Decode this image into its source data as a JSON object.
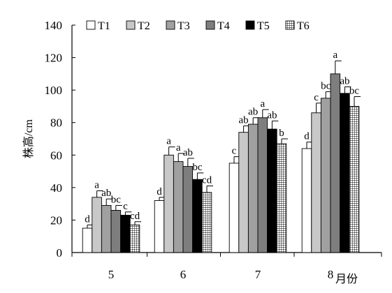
{
  "chart_data": {
    "type": "bar",
    "title": "",
    "xlabel": "月份",
    "ylabel": "株高/cm",
    "ylim": [
      0,
      140
    ],
    "yticks": [
      0,
      20,
      40,
      60,
      80,
      100,
      120,
      140
    ],
    "grid": false,
    "legend_position": "top",
    "categories": [
      "5",
      "6",
      "7",
      "8"
    ],
    "series": [
      {
        "name": "T1",
        "values": [
          15,
          32,
          55,
          64
        ],
        "errors": [
          2,
          2,
          4,
          4
        ],
        "sig": [
          "d",
          "d",
          "c",
          "d"
        ],
        "pattern": "white"
      },
      {
        "name": "T2",
        "values": [
          34,
          60,
          74,
          86
        ],
        "errors": [
          4,
          5,
          4,
          6
        ],
        "sig": [
          "a",
          "a",
          "ab",
          "c"
        ],
        "pattern": "lightgray"
      },
      {
        "name": "T3",
        "values": [
          29,
          56,
          79,
          95
        ],
        "errors": [
          4,
          5,
          4,
          4
        ],
        "sig": [
          "ab",
          "a",
          "ab",
          "bc"
        ],
        "pattern": "gray"
      },
      {
        "name": "T4",
        "values": [
          26,
          53,
          83,
          110
        ],
        "errors": [
          3,
          5,
          5,
          8
        ],
        "sig": [
          "bc",
          "ab",
          "a",
          "a"
        ],
        "pattern": "darkgray"
      },
      {
        "name": "T5",
        "values": [
          23,
          45,
          76,
          98
        ],
        "errors": [
          2,
          4,
          5,
          4
        ],
        "sig": [
          "c",
          "bc",
          "ab",
          "ab"
        ],
        "pattern": "black"
      },
      {
        "name": "T6",
        "values": [
          17,
          37,
          67,
          90
        ],
        "errors": [
          2,
          4,
          3,
          6
        ],
        "sig": [
          "cd",
          "cd",
          "b",
          "bc"
        ],
        "pattern": "grid"
      }
    ],
    "colors": {
      "white": "#ffffff",
      "lightgray": "#c8c8c8",
      "gray": "#a0a0a0",
      "darkgray": "#7e7e7e",
      "black": "#000000",
      "grid": "#ffffff",
      "outline": "#000000"
    }
  }
}
